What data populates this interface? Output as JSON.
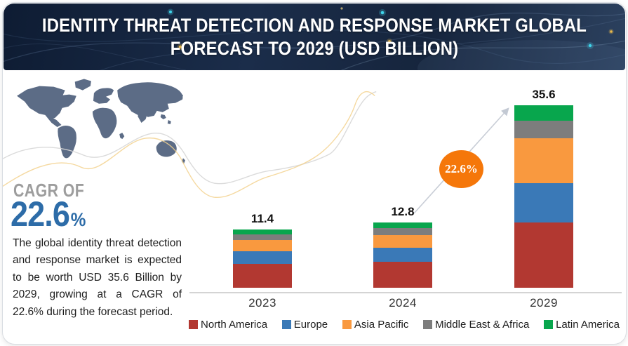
{
  "title": "IDENTITY THREAT DETECTION AND RESPONSE MARKET GLOBAL FORECAST TO 2029 (USD BILLION)",
  "cagr": {
    "label": "CAGR OF",
    "value": "22.6",
    "percent_sign": "%",
    "badge_text": "22.6%"
  },
  "description": "The global identity threat detection and response market is expected to be worth USD 35.6 Billion by 2029, growing at a CAGR of 22.6% during the forecast period.",
  "colors": {
    "cagr_blue": "#2d6ca8",
    "badge_orange": "#f5770a",
    "banner_navy": "#16253d",
    "map_slate": "#5c6c86",
    "wave_yellow": "#f3d28f",
    "wave_gray": "#d7d7d7",
    "axis_gray": "#d4d4d4"
  },
  "chart_data": {
    "type": "bar",
    "stacked": true,
    "title": "Identity Threat Detection and Response Market Global Forecast to 2029 (USD Billion)",
    "categories": [
      "2023",
      "2024",
      "2029"
    ],
    "totals": [
      "11.4",
      "12.8",
      "35.6"
    ],
    "series": [
      {
        "name": "North America",
        "color": "#b23831",
        "values": [
          4.6,
          5.0,
          12.8
        ]
      },
      {
        "name": "Europe",
        "color": "#3a79b7",
        "values": [
          2.5,
          2.8,
          7.6
        ]
      },
      {
        "name": "Asia Pacific",
        "color": "#f9993f",
        "values": [
          2.2,
          2.5,
          8.8
        ]
      },
      {
        "name": "Middle East & Africa",
        "color": "#7d7d7d",
        "values": [
          1.1,
          1.3,
          3.4
        ]
      },
      {
        "name": "Latin America",
        "color": "#08a64d",
        "values": [
          1.0,
          1.2,
          3.0
        ]
      }
    ],
    "annotations": [
      "22.6%"
    ],
    "xlabel": "",
    "ylabel": "",
    "legend_position": "bottom",
    "grid": false
  }
}
